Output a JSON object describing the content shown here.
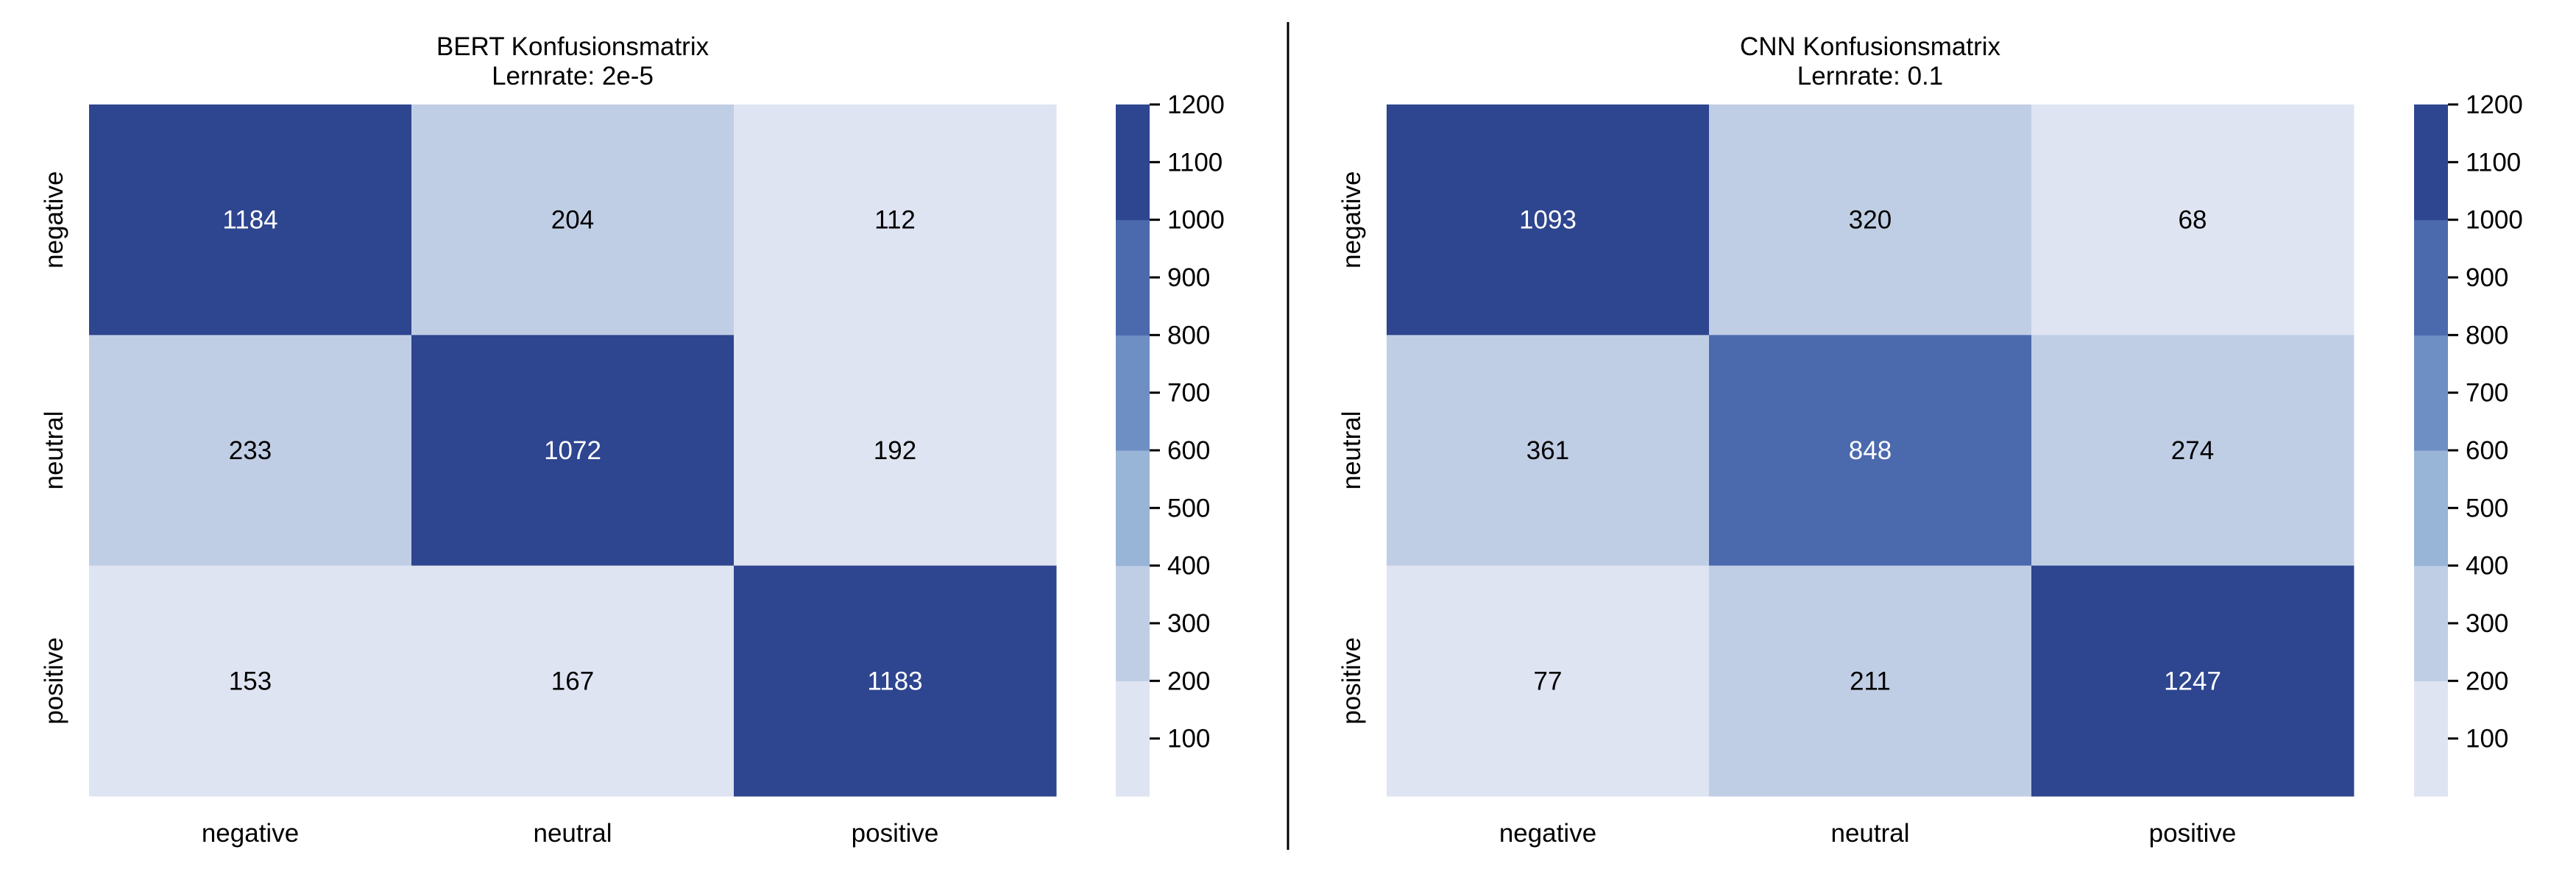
{
  "figure": {
    "divider": true,
    "colors": {
      "bins": [
        "#dfe4f2",
        "#c0cee5",
        "#98b4d6",
        "#6e8fc4",
        "#4b69ad",
        "#2e458f"
      ],
      "text_dark": "#000000",
      "text_light": "#ffffff",
      "axis": "#000000"
    }
  },
  "chart_data": [
    {
      "type": "heatmap",
      "title": "BERT Konfusionsmatrix",
      "subtitle": "Lernrate: 2e-5",
      "x_categories": [
        "negative",
        "neutral",
        "positive"
      ],
      "y_categories": [
        "negative",
        "neutral",
        "positive"
      ],
      "values": [
        [
          1184,
          204,
          112
        ],
        [
          233,
          1072,
          192
        ],
        [
          153,
          167,
          1183
        ]
      ],
      "colorbar": {
        "range": [
          0,
          1200
        ],
        "ticks": [
          100,
          200,
          300,
          400,
          500,
          600,
          700,
          800,
          900,
          1000,
          1100,
          1200
        ],
        "bin_edges": [
          0,
          200,
          400,
          600,
          800,
          1000,
          1200
        ]
      }
    },
    {
      "type": "heatmap",
      "title": "CNN Konfusionsmatrix",
      "subtitle": "Lernrate: 0.1",
      "x_categories": [
        "negative",
        "neutral",
        "positive"
      ],
      "y_categories": [
        "negative",
        "neutral",
        "positive"
      ],
      "values": [
        [
          1093,
          320,
          68
        ],
        [
          361,
          848,
          274
        ],
        [
          77,
          211,
          1247
        ]
      ],
      "colorbar": {
        "range": [
          0,
          1200
        ],
        "ticks": [
          100,
          200,
          300,
          400,
          500,
          600,
          700,
          800,
          900,
          1000,
          1100,
          1200
        ],
        "bin_edges": [
          0,
          200,
          400,
          600,
          800,
          1000,
          1200
        ]
      }
    }
  ]
}
